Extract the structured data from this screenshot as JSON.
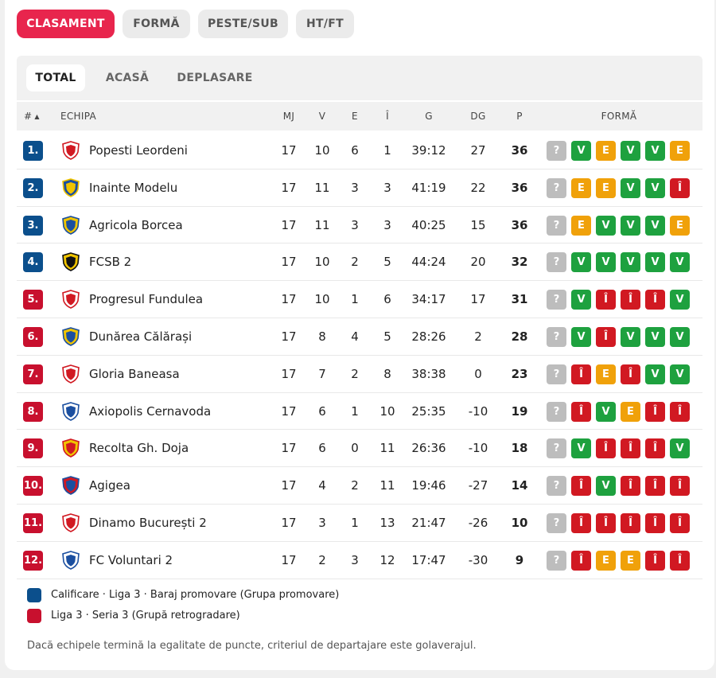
{
  "colors": {
    "accent": "#e8254d",
    "promotion": "#0b4f8c",
    "relegation": "#c8102e",
    "win": "#1ea13f",
    "draw": "#f0a10a",
    "loss": "#d11922",
    "unknown": "#bdbdbd"
  },
  "top_tabs": [
    {
      "label": "CLASAMENT",
      "active": true
    },
    {
      "label": "FORMĂ",
      "active": false
    },
    {
      "label": "PESTE/SUB",
      "active": false
    },
    {
      "label": "HT/FT",
      "active": false
    }
  ],
  "sub_tabs": [
    {
      "label": "TOTAL",
      "active": true
    },
    {
      "label": "ACASĂ",
      "active": false
    },
    {
      "label": "DEPLASARE",
      "active": false
    }
  ],
  "columns": {
    "rank": "#",
    "team": "ECHIPA",
    "mj": "MJ",
    "v": "V",
    "e": "E",
    "i": "Î",
    "g": "G",
    "dg": "DG",
    "p": "P",
    "form": "FORMĂ"
  },
  "rows": [
    {
      "rank": "1.",
      "zone": "promotion",
      "team": "Popesti Leordeni",
      "logo": "shield-icon",
      "mj": "17",
      "v": "10",
      "e": "6",
      "i": "1",
      "g": "39:12",
      "dg": "27",
      "p": "36",
      "form": [
        "?",
        "V",
        "E",
        "V",
        "V",
        "E"
      ]
    },
    {
      "rank": "2.",
      "zone": "promotion",
      "team": "Inainte Modelu",
      "logo": "shield-icon",
      "mj": "17",
      "v": "11",
      "e": "3",
      "i": "3",
      "g": "41:19",
      "dg": "22",
      "p": "36",
      "form": [
        "?",
        "E",
        "E",
        "V",
        "V",
        "Î"
      ]
    },
    {
      "rank": "3.",
      "zone": "promotion",
      "team": "Agricola Borcea",
      "logo": "shield-icon",
      "mj": "17",
      "v": "11",
      "e": "3",
      "i": "3",
      "g": "40:25",
      "dg": "15",
      "p": "36",
      "form": [
        "?",
        "E",
        "V",
        "V",
        "V",
        "E"
      ]
    },
    {
      "rank": "4.",
      "zone": "promotion",
      "team": "FCSB 2",
      "logo": "star-badge-icon",
      "mj": "17",
      "v": "10",
      "e": "2",
      "i": "5",
      "g": "44:24",
      "dg": "20",
      "p": "32",
      "form": [
        "?",
        "V",
        "V",
        "V",
        "V",
        "V"
      ]
    },
    {
      "rank": "5.",
      "zone": "relegation",
      "team": "Progresul Fundulea",
      "logo": "shield-icon",
      "mj": "17",
      "v": "10",
      "e": "1",
      "i": "6",
      "g": "34:17",
      "dg": "17",
      "p": "31",
      "form": [
        "?",
        "V",
        "Î",
        "Î",
        "Î",
        "V"
      ]
    },
    {
      "rank": "6.",
      "zone": "relegation",
      "team": "Dunărea Călărași",
      "logo": "shield-icon",
      "mj": "17",
      "v": "8",
      "e": "4",
      "i": "5",
      "g": "28:26",
      "dg": "2",
      "p": "28",
      "form": [
        "?",
        "V",
        "Î",
        "V",
        "V",
        "V"
      ]
    },
    {
      "rank": "7.",
      "zone": "relegation",
      "team": "Gloria Baneasa",
      "logo": "shield-icon",
      "mj": "17",
      "v": "7",
      "e": "2",
      "i": "8",
      "g": "38:38",
      "dg": "0",
      "p": "23",
      "form": [
        "?",
        "Î",
        "E",
        "Î",
        "V",
        "V"
      ]
    },
    {
      "rank": "8.",
      "zone": "relegation",
      "team": "Axiopolis Cernavoda",
      "logo": "shield-icon",
      "mj": "17",
      "v": "6",
      "e": "1",
      "i": "10",
      "g": "25:35",
      "dg": "-10",
      "p": "19",
      "form": [
        "?",
        "Î",
        "V",
        "E",
        "Î",
        "Î"
      ]
    },
    {
      "rank": "9.",
      "zone": "relegation",
      "team": "Recolta Gh. Doja",
      "logo": "shield-icon",
      "mj": "17",
      "v": "6",
      "e": "0",
      "i": "11",
      "g": "26:36",
      "dg": "-10",
      "p": "18",
      "form": [
        "?",
        "V",
        "Î",
        "Î",
        "Î",
        "V"
      ]
    },
    {
      "rank": "10.",
      "zone": "relegation",
      "team": "Agigea",
      "logo": "shield-icon",
      "mj": "17",
      "v": "4",
      "e": "2",
      "i": "11",
      "g": "19:46",
      "dg": "-27",
      "p": "14",
      "form": [
        "?",
        "Î",
        "V",
        "Î",
        "Î",
        "Î"
      ]
    },
    {
      "rank": "11.",
      "zone": "relegation",
      "team": "Dinamo București 2",
      "logo": "shield-icon",
      "mj": "17",
      "v": "3",
      "e": "1",
      "i": "13",
      "g": "21:47",
      "dg": "-26",
      "p": "10",
      "form": [
        "?",
        "Î",
        "Î",
        "Î",
        "Î",
        "Î"
      ]
    },
    {
      "rank": "12.",
      "zone": "relegation",
      "team": "FC Voluntari 2",
      "logo": "shield-icon",
      "mj": "17",
      "v": "2",
      "e": "3",
      "i": "12",
      "g": "17:47",
      "dg": "-30",
      "p": "9",
      "form": [
        "?",
        "Î",
        "E",
        "E",
        "Î",
        "Î"
      ]
    }
  ],
  "legend": [
    {
      "zone": "promotion",
      "label": "Calificare · Liga 3 · Baraj promovare (Grupa promovare)"
    },
    {
      "zone": "relegation",
      "label": "Liga 3 · Seria 3 (Grupă retrogradare)"
    }
  ],
  "note": "Dacă echipele termină la egalitate de puncte, criteriul de departajare este golaverajul."
}
